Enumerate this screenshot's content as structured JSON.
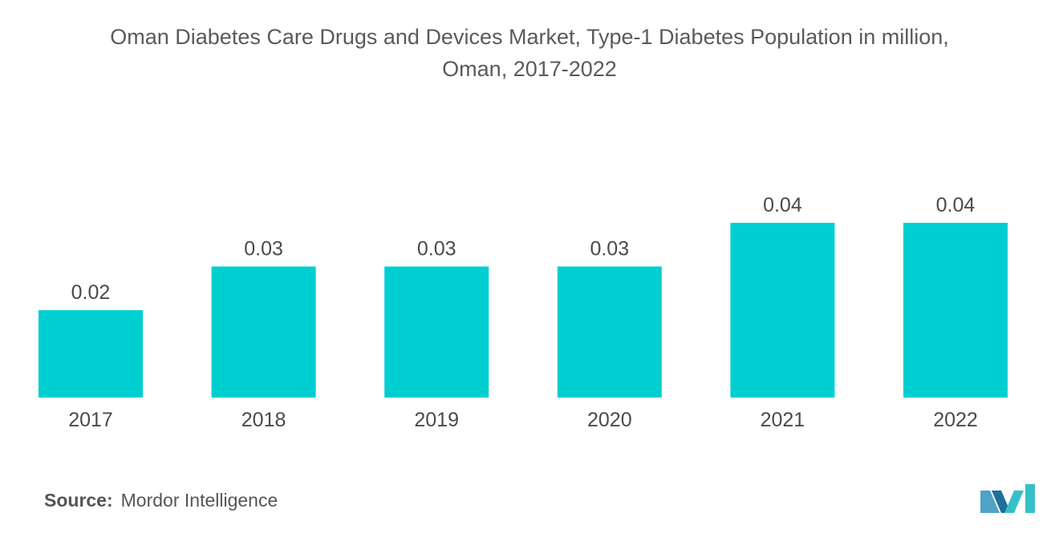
{
  "chart_data": {
    "type": "bar",
    "title_line1": "Oman Diabetes Care Drugs and Devices Market, Type-1 Diabetes Population in million,",
    "title_line2": "Oman, 2017-2022",
    "categories": [
      "2017",
      "2018",
      "2019",
      "2020",
      "2021",
      "2022"
    ],
    "values": [
      0.02,
      0.03,
      0.03,
      0.03,
      0.04,
      0.04
    ],
    "value_labels": [
      "0.02",
      "0.03",
      "0.03",
      "0.03",
      "0.04",
      "0.04"
    ],
    "xlabel": "",
    "ylabel": "",
    "ylim": [
      0,
      0.04
    ],
    "grid": false,
    "legend": "none",
    "bar_color": "#00cfd1"
  },
  "source": {
    "label": "Source:",
    "text": "Mordor Intelligence"
  },
  "logo": {
    "icon": "mordor-intelligence-logo-icon",
    "colors": [
      "#4fa3c7",
      "#1f6f9a",
      "#35c0c8"
    ]
  }
}
